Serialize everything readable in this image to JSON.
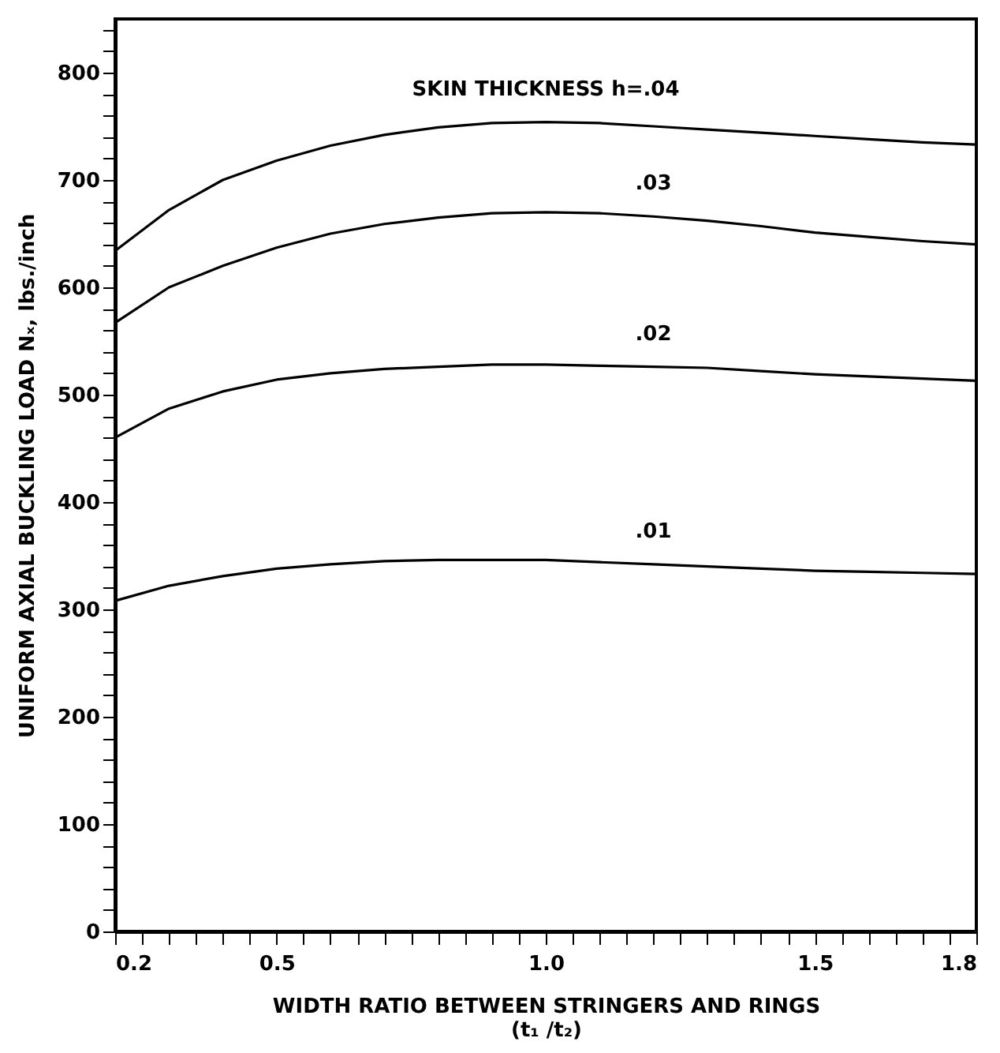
{
  "chart_data": {
    "type": "line",
    "xlabel": "WIDTH RATIO BETWEEN STRINGERS AND RINGS\n(t₁ /t₂)",
    "ylabel": "UNIFORM AXIAL BUCKLING LOAD Nₓ,  lbs./inch",
    "xlim": [
      0.2,
      1.8
    ],
    "ylim": [
      0,
      850
    ],
    "xticks": [
      0.2,
      {
        "value": 0.25,
        "label": null
      },
      {
        "value": 0.3,
        "label": null
      },
      {
        "value": 0.35,
        "label": null
      },
      {
        "value": 0.4,
        "label": null
      },
      {
        "value": 0.45,
        "label": null
      },
      0.5,
      {
        "value": 0.55,
        "label": null
      },
      {
        "value": 0.6,
        "label": null
      },
      {
        "value": 0.65,
        "label": null
      },
      {
        "value": 0.7,
        "label": null
      },
      {
        "value": 0.75,
        "label": null
      },
      {
        "value": 0.8,
        "label": null
      },
      {
        "value": 0.85,
        "label": null
      },
      {
        "value": 0.9,
        "label": null
      },
      {
        "value": 0.95,
        "label": null
      },
      {
        "value": 1.0,
        "label": "1.0"
      },
      {
        "value": 1.05,
        "label": null
      },
      {
        "value": 1.1,
        "label": null
      },
      {
        "value": 1.15,
        "label": null
      },
      {
        "value": 1.2,
        "label": null
      },
      {
        "value": 1.25,
        "label": null
      },
      {
        "value": 1.3,
        "label": null
      },
      {
        "value": 1.35,
        "label": null
      },
      {
        "value": 1.4,
        "label": null
      },
      {
        "value": 1.45,
        "label": null
      },
      1.5,
      {
        "value": 1.55,
        "label": null
      },
      {
        "value": 1.6,
        "label": null
      },
      {
        "value": 1.65,
        "label": null
      },
      {
        "value": 1.7,
        "label": null
      },
      {
        "value": 1.75,
        "label": null
      },
      1.8
    ],
    "yticks": [
      0,
      100,
      200,
      300,
      400,
      500,
      600,
      700,
      800,
      {
        "value": 20,
        "label": null
      },
      {
        "value": 40,
        "label": null
      },
      {
        "value": 60,
        "label": null
      },
      {
        "value": 80,
        "label": null
      },
      {
        "value": 120,
        "label": null
      },
      {
        "value": 140,
        "label": null
      },
      {
        "value": 160,
        "label": null
      },
      {
        "value": 180,
        "label": null
      },
      {
        "value": 220,
        "label": null
      },
      {
        "value": 240,
        "label": null
      },
      {
        "value": 260,
        "label": null
      },
      {
        "value": 280,
        "label": null
      },
      {
        "value": 320,
        "label": null
      },
      {
        "value": 340,
        "label": null
      },
      {
        "value": 360,
        "label": null
      },
      {
        "value": 380,
        "label": null
      },
      {
        "value": 420,
        "label": null
      },
      {
        "value": 440,
        "label": null
      },
      {
        "value": 460,
        "label": null
      },
      {
        "value": 480,
        "label": null
      },
      {
        "value": 520,
        "label": null
      },
      {
        "value": 540,
        "label": null
      },
      {
        "value": 560,
        "label": null
      },
      {
        "value": 580,
        "label": null
      },
      {
        "value": 620,
        "label": null
      },
      {
        "value": 640,
        "label": null
      },
      {
        "value": 660,
        "label": null
      },
      {
        "value": 680,
        "label": null
      },
      {
        "value": 720,
        "label": null
      },
      {
        "value": 740,
        "label": null
      },
      {
        "value": 760,
        "label": null
      },
      {
        "value": 780,
        "label": null
      },
      {
        "value": 820,
        "label": null
      },
      {
        "value": 840,
        "label": null
      }
    ],
    "x": [
      0.2,
      0.3,
      0.4,
      0.5,
      0.6,
      0.7,
      0.8,
      0.9,
      1.0,
      1.1,
      1.2,
      1.3,
      1.4,
      1.5,
      1.6,
      1.7,
      1.8
    ],
    "series": [
      {
        "name": "SKIN THICKNESS  h=.04",
        "color": "#000000",
        "values": [
          634,
          672,
          700,
          718,
          732,
          742,
          749,
          753,
          754,
          753,
          750,
          747,
          744,
          741,
          738,
          735,
          733
        ]
      },
      {
        "name": ".03",
        "color": "#000000",
        "values": [
          567,
          600,
          620,
          637,
          650,
          659,
          665,
          669,
          670,
          669,
          666,
          662,
          657,
          651,
          647,
          643,
          640
        ]
      },
      {
        "name": ".02",
        "color": "#000000",
        "values": [
          460,
          487,
          503,
          514,
          520,
          524,
          526,
          528,
          528,
          527,
          526,
          525,
          522,
          519,
          517,
          515,
          513
        ]
      },
      {
        "name": ".01",
        "color": "#000000",
        "values": [
          308,
          322,
          331,
          338,
          342,
          345,
          346,
          346,
          346,
          344,
          342,
          340,
          338,
          336,
          335,
          334,
          333
        ]
      }
    ],
    "grid": false,
    "marker": "none",
    "line_style": "solid"
  }
}
